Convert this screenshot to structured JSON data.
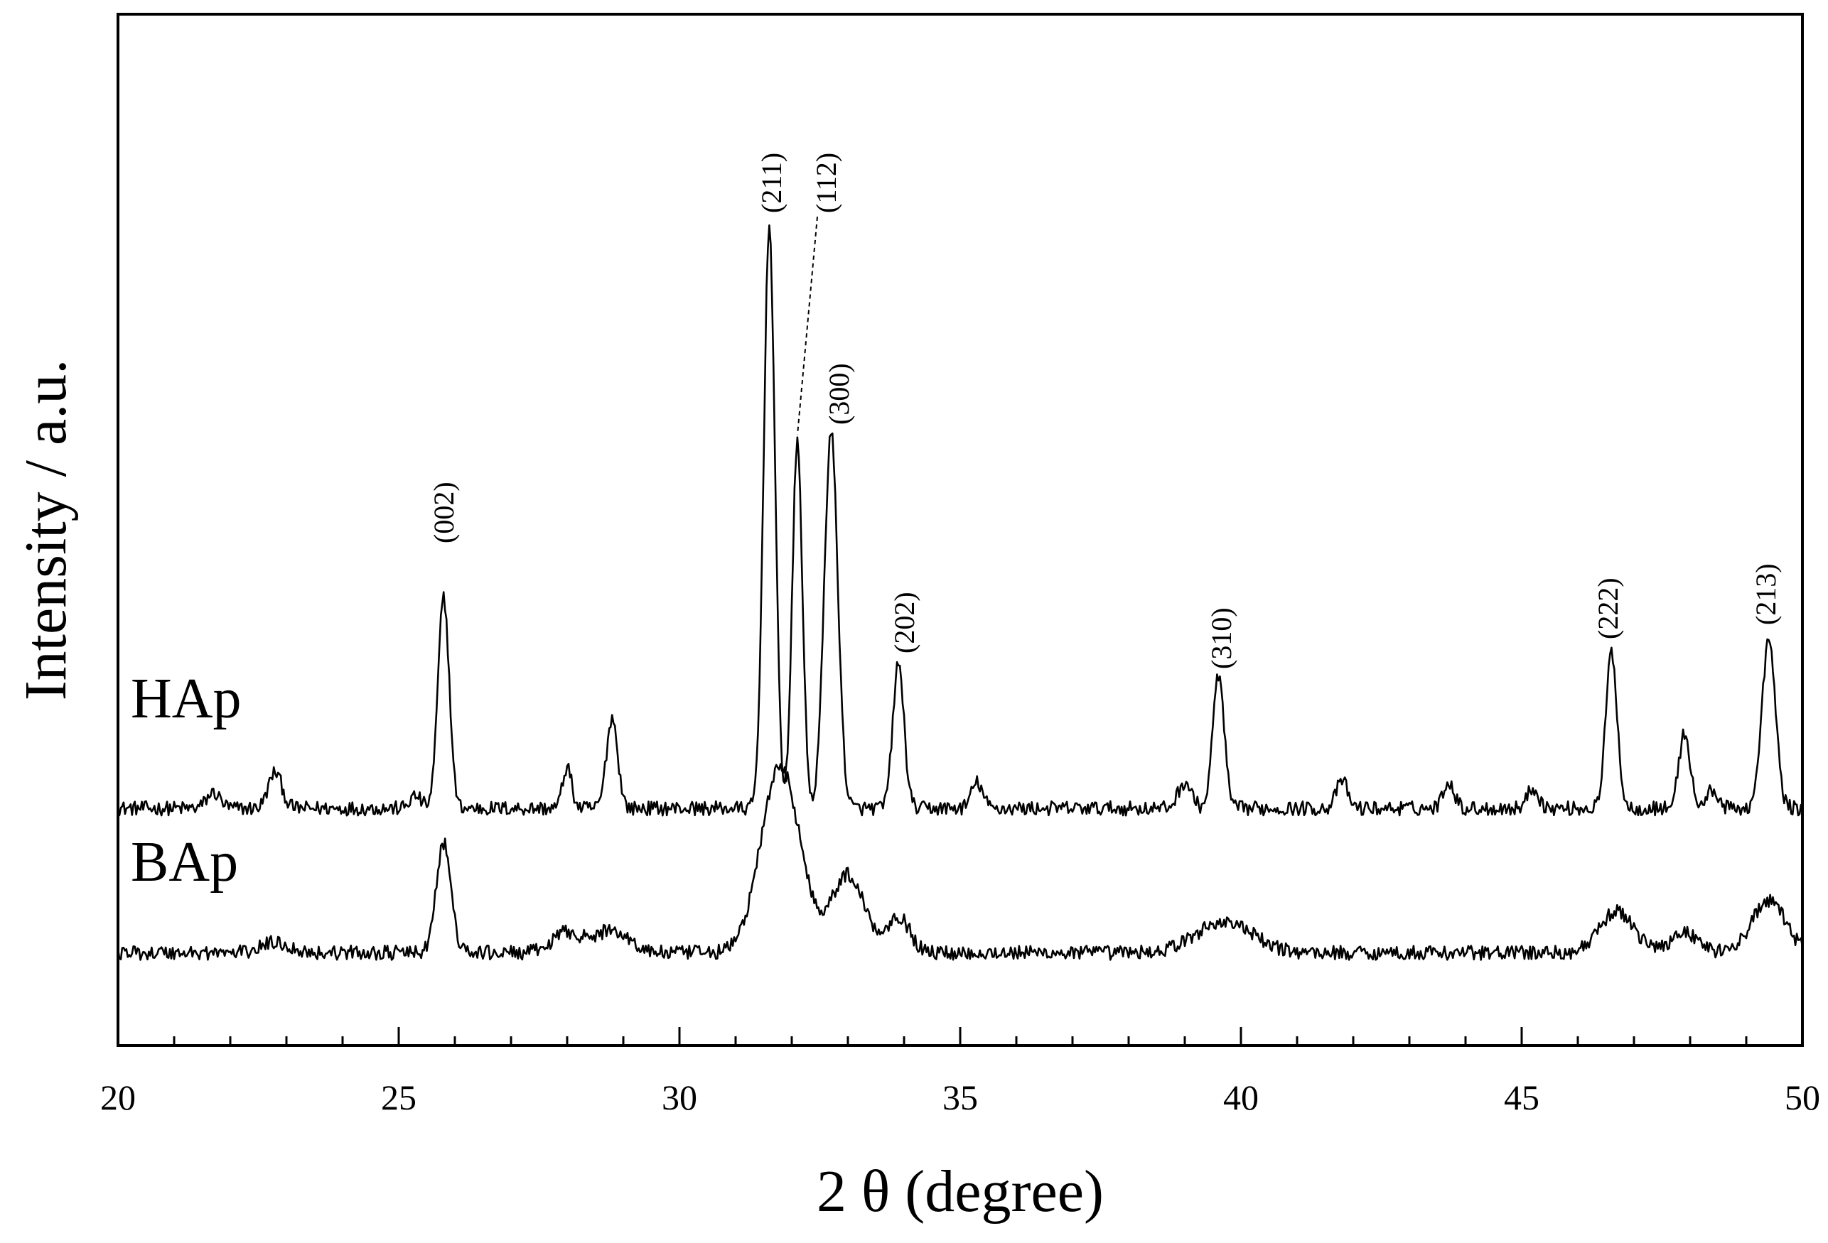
{
  "chart_data": {
    "type": "line",
    "title": "",
    "xlabel": "2 θ (degree)",
    "ylabel": "Intensity / a.u.",
    "xlim": [
      20,
      50
    ],
    "ylim": [
      0,
      100
    ],
    "x_ticks": [
      20,
      25,
      30,
      35,
      40,
      45,
      50
    ],
    "x_minor_step": 1,
    "y_tick_labels": false,
    "grid": false,
    "legend": "none",
    "series": [
      {
        "name": "HAp",
        "baseline": 23,
        "noise": 0.7,
        "peaks": [
          {
            "x": 21.7,
            "h": 1.5,
            "w": 0.12
          },
          {
            "x": 22.8,
            "h": 3.5,
            "w": 0.12
          },
          {
            "x": 25.3,
            "h": 1.2,
            "w": 0.1
          },
          {
            "x": 25.8,
            "h": 20.5,
            "w": 0.1
          },
          {
            "x": 28.0,
            "h": 4.0,
            "w": 0.08
          },
          {
            "x": 28.8,
            "h": 8.8,
            "w": 0.1
          },
          {
            "x": 31.6,
            "h": 56.5,
            "w": 0.1
          },
          {
            "x": 32.1,
            "h": 35.5,
            "w": 0.09
          },
          {
            "x": 32.7,
            "h": 36.5,
            "w": 0.12
          },
          {
            "x": 33.9,
            "h": 14.0,
            "w": 0.1
          },
          {
            "x": 35.3,
            "h": 2.5,
            "w": 0.1
          },
          {
            "x": 39.0,
            "h": 2.5,
            "w": 0.12
          },
          {
            "x": 39.6,
            "h": 13.0,
            "w": 0.1
          },
          {
            "x": 41.8,
            "h": 2.7,
            "w": 0.1
          },
          {
            "x": 43.7,
            "h": 2.6,
            "w": 0.1
          },
          {
            "x": 45.2,
            "h": 2.0,
            "w": 0.1
          },
          {
            "x": 46.6,
            "h": 15.2,
            "w": 0.1
          },
          {
            "x": 47.9,
            "h": 7.3,
            "w": 0.1
          },
          {
            "x": 48.4,
            "h": 1.8,
            "w": 0.1
          },
          {
            "x": 49.4,
            "h": 16.3,
            "w": 0.12
          }
        ],
        "peak_labels": [
          {
            "text": "(002)",
            "x": 25.8
          },
          {
            "text": "(211)",
            "x": 31.6
          },
          {
            "text": "(112)",
            "x": 32.1
          },
          {
            "text": "(300)",
            "x": 32.7
          },
          {
            "text": "(202)",
            "x": 33.9
          },
          {
            "text": "(310)",
            "x": 39.6
          },
          {
            "text": "(222)",
            "x": 46.6
          },
          {
            "text": "(213)",
            "x": 49.4
          }
        ]
      },
      {
        "name": "BAp",
        "baseline": 9,
        "noise": 0.7,
        "peaks": [
          {
            "x": 22.8,
            "h": 1.0,
            "w": 0.25
          },
          {
            "x": 25.8,
            "h": 10.6,
            "w": 0.13
          },
          {
            "x": 28.0,
            "h": 2.0,
            "w": 0.25
          },
          {
            "x": 28.8,
            "h": 2.2,
            "w": 0.3
          },
          {
            "x": 31.8,
            "h": 18.0,
            "w": 0.35
          },
          {
            "x": 33.0,
            "h": 7.5,
            "w": 0.3
          },
          {
            "x": 33.9,
            "h": 3.5,
            "w": 0.2
          },
          {
            "x": 39.7,
            "h": 3.0,
            "w": 0.5
          },
          {
            "x": 46.7,
            "h": 4.0,
            "w": 0.3
          },
          {
            "x": 47.9,
            "h": 2.0,
            "w": 0.25
          },
          {
            "x": 49.4,
            "h": 5.0,
            "w": 0.3
          }
        ]
      }
    ]
  }
}
